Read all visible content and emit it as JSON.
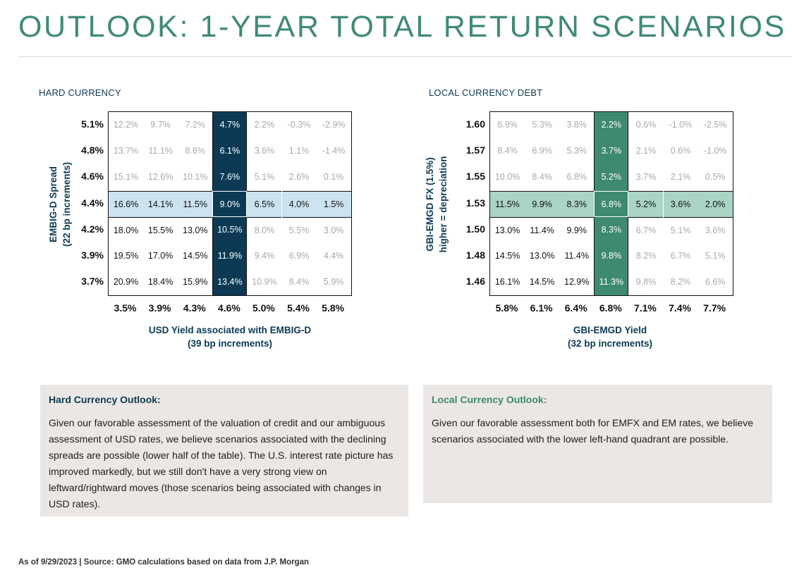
{
  "title": "OUTLOOK: 1-YEAR TOTAL RETURN SCENARIOS",
  "colors": {
    "title": "#3f8a78",
    "hard_accent": "#0c3a55",
    "hard_row": "#cbe3ee",
    "local_accent": "#3d8a71",
    "local_row": "#a9d4c6",
    "faded_text": "#a9a9a9",
    "box_bg": "#ebe7e4"
  },
  "chart_data": [
    {
      "type": "table",
      "title": "HARD CURRENCY",
      "ylabel": [
        "EMBIG-D Spread",
        "(22 bp increments)"
      ],
      "xlabel": [
        "USD Yield associated with EMBIG-D",
        "(39 bp increments)"
      ],
      "row_labels": [
        "5.1%",
        "4.8%",
        "4.6%",
        "4.4%",
        "4.2%",
        "3.9%",
        "3.7%"
      ],
      "col_labels": [
        "3.5%",
        "3.9%",
        "4.3%",
        "4.6%",
        "5.0%",
        "5.4%",
        "5.8%"
      ],
      "highlight_row": 3,
      "highlight_col": 3,
      "values": [
        [
          "12.2%",
          "9.7%",
          "7.2%",
          "4.7%",
          "2.2%",
          "-0.3%",
          "-2.9%"
        ],
        [
          "13.7%",
          "11.1%",
          "8.6%",
          "6.1%",
          "3.6%",
          "1.1%",
          "-1.4%"
        ],
        [
          "15.1%",
          "12.6%",
          "10.1%",
          "7.6%",
          "5.1%",
          "2.6%",
          "0.1%"
        ],
        [
          "16.6%",
          "14.1%",
          "11.5%",
          "9.0%",
          "6.5%",
          "4.0%",
          "1.5%"
        ],
        [
          "18.0%",
          "15.5%",
          "13.0%",
          "10.5%",
          "8.0%",
          "5.5%",
          "3.0%"
        ],
        [
          "19.5%",
          "17.0%",
          "14.5%",
          "11.9%",
          "9.4%",
          "6.9%",
          "4.4%"
        ],
        [
          "20.9%",
          "18.4%",
          "15.9%",
          "13.4%",
          "10.9%",
          "8.4%",
          "5.9%"
        ]
      ]
    },
    {
      "type": "table",
      "title": "LOCAL CURRENCY DEBT",
      "ylabel": [
        "GBI-EMGD FX (1.5%)",
        "higher = depreciation"
      ],
      "xlabel": [
        "GBI-EMGD Yield",
        "(32 bp increments)"
      ],
      "row_labels": [
        "1.60",
        "1.57",
        "1.55",
        "1.53",
        "1.50",
        "1.48",
        "1.46"
      ],
      "col_labels": [
        "5.8%",
        "6.1%",
        "6.4%",
        "6.8%",
        "7.1%",
        "7.4%",
        "7.7%"
      ],
      "highlight_row": 3,
      "highlight_col": 3,
      "values": [
        [
          "6.9%",
          "5.3%",
          "3.8%",
          "2.2%",
          "0.6%",
          "-1.0%",
          "-2.5%"
        ],
        [
          "8.4%",
          "6.9%",
          "5.3%",
          "3.7%",
          "2.1%",
          "0.6%",
          "-1.0%"
        ],
        [
          "10.0%",
          "8.4%",
          "6.8%",
          "5.2%",
          "3.7%",
          "2.1%",
          "0.5%"
        ],
        [
          "11.5%",
          "9.9%",
          "8.3%",
          "6.8%",
          "5.2%",
          "3.6%",
          "2.0%"
        ],
        [
          "13.0%",
          "11.4%",
          "9.9%",
          "8.3%",
          "6.7%",
          "5.1%",
          "3.6%"
        ],
        [
          "14.5%",
          "13.0%",
          "11.4%",
          "9.8%",
          "8.2%",
          "6.7%",
          "5.1%"
        ],
        [
          "16.1%",
          "14.5%",
          "12.9%",
          "11.3%",
          "9.8%",
          "8.2%",
          "6.6%"
        ]
      ]
    }
  ],
  "hard_box": {
    "heading": "Hard Currency Outlook:",
    "text": "Given our favorable assessment of the valuation of credit and our ambiguous assessment of USD rates, we believe scenarios associated with the declining spreads are possible (lower half of the table).  The U.S. interest rate picture has improved markedly, but we still don't have a very strong view on leftward/rightward moves (those scenarios being associated with changes in USD rates)."
  },
  "local_box": {
    "heading": "Local Currency Outlook:",
    "text": "Given our favorable assessment both for EMFX and EM rates,  we believe scenarios associated with the lower left-hand quadrant are possible."
  },
  "footnote": "As of 9/29/2023 | Source: GMO calculations based on data from J.P. Morgan"
}
